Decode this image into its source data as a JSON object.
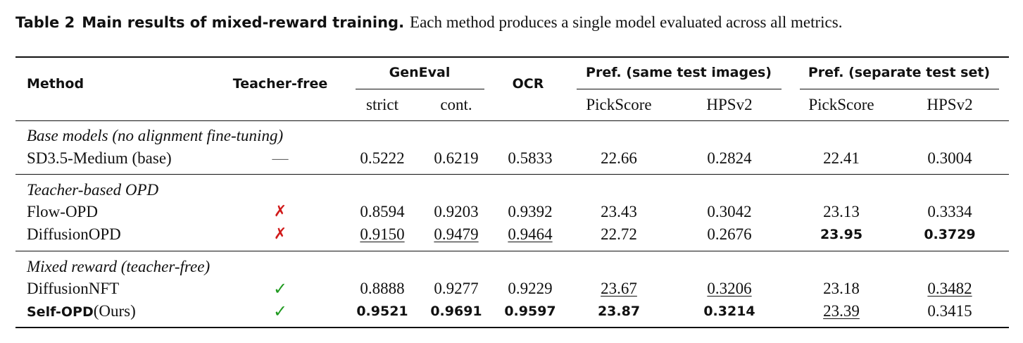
{
  "caption": {
    "label": "Table 2",
    "title": "Main results of mixed-reward training.",
    "text": "Each method produces a single model evaluated across all metrics."
  },
  "table": {
    "headers": {
      "method": "Method",
      "teacher_free": "Teacher-free",
      "geneval": "GenEval",
      "ocr": "OCR",
      "pref_same": "Pref. (same test images)",
      "pref_separate": "Pref. (separate test set)",
      "sub": {
        "strict": "strict",
        "cont": "cont.",
        "pickscore_same": "PickScore",
        "hpsv2_same": "HPSv2",
        "pickscore_sep": "PickScore",
        "hpsv2_sep": "HPSv2"
      }
    },
    "groups": [
      {
        "title": "Base models (no alignment fine-tuning)",
        "rows": [
          {
            "method": "SD3.5-Medium (base)",
            "teacher_free": "—",
            "strict": "0.5222",
            "cont": "0.6219",
            "ocr": "0.5833",
            "pick_same": "22.66",
            "hps_same": "0.2824",
            "pick_sep": "22.41",
            "hps_sep": "0.3004"
          }
        ]
      },
      {
        "title": "Teacher-based OPD",
        "rows": [
          {
            "method": "Flow-OPD",
            "teacher_free": "✗",
            "strict": "0.8594",
            "cont": "0.9203",
            "ocr": "0.9392",
            "pick_same": "23.43",
            "hps_same": "0.3042",
            "pick_sep": "23.13",
            "hps_sep": "0.3334"
          },
          {
            "method": "DiffusionOPD",
            "teacher_free": "✗",
            "strict": "0.9150",
            "cont": "0.9479",
            "ocr": "0.9464",
            "pick_same": "22.72",
            "hps_same": "0.2676",
            "pick_sep": "23.95",
            "hps_sep": "0.3729"
          }
        ]
      },
      {
        "title": "Mixed reward (teacher-free)",
        "rows": [
          {
            "method": "DiffusionNFT",
            "teacher_free": "✓",
            "strict": "0.8888",
            "cont": "0.9277",
            "ocr": "0.9229",
            "pick_same": "23.67",
            "hps_same": "0.3206",
            "pick_sep": "23.18",
            "hps_sep": "0.3482"
          },
          {
            "method_bold": "Self-OPD",
            "method_suffix": "(Ours)",
            "teacher_free": "✓",
            "strict": "0.9521",
            "cont": "0.9691",
            "ocr": "0.9597",
            "pick_same": "23.87",
            "hps_same": "0.3214",
            "pick_sep": "23.39",
            "hps_sep": "0.3415"
          }
        ]
      }
    ]
  }
}
